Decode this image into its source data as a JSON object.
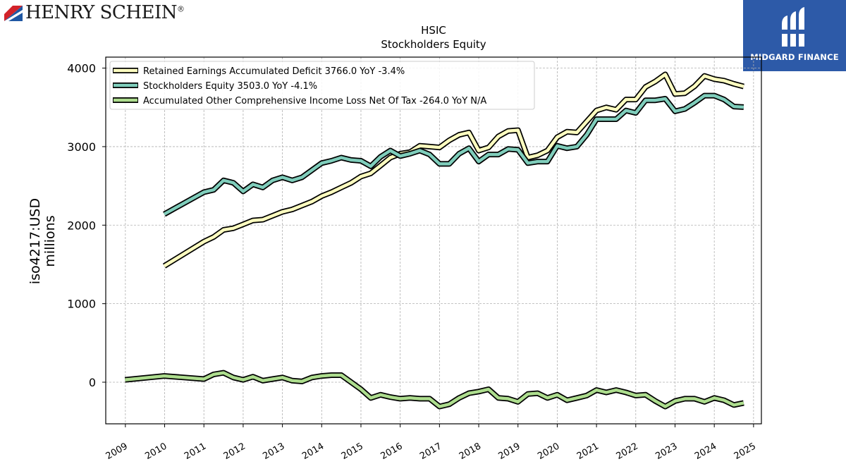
{
  "branding": {
    "company_logo_text": "HENRY SCHEIN",
    "company_logo_mark": "®",
    "publisher_logo_text": "MIDGARD FINANCE",
    "company_logo_icon": "henry-schein-wing-icon",
    "publisher_logo_icon": "midgard-finance-icon"
  },
  "chart_data": {
    "type": "line",
    "title": "HSIC",
    "subtitle": "Stockholders  Equity",
    "ylabel_line1": "iso4217:USD",
    "ylabel_line2": "millions",
    "xlabel": "",
    "xlim": [
      2008.5,
      2025.2
    ],
    "ylim": [
      -530,
      4140
    ],
    "yticks": [
      0,
      1000,
      2000,
      3000,
      4000
    ],
    "xticks": [
      "2009",
      "2010",
      "2011",
      "2012",
      "2013",
      "2014",
      "2015",
      "2016",
      "2017",
      "2018",
      "2019",
      "2020",
      "2021",
      "2022",
      "2023",
      "2024",
      "2025"
    ],
    "grid": true,
    "legend_position": "top-left",
    "series": [
      {
        "name": "Retained Earnings Accumulated Deficit  3766.0 YoY -3.4%",
        "color": "#ffffc0",
        "points": [
          [
            2009.99,
            1480
          ],
          [
            2011.0,
            1790
          ],
          [
            2011.25,
            1850
          ],
          [
            2011.5,
            1940
          ],
          [
            2011.75,
            1960
          ],
          [
            2012.0,
            2010
          ],
          [
            2012.25,
            2060
          ],
          [
            2012.5,
            2070
          ],
          [
            2012.75,
            2120
          ],
          [
            2013.0,
            2170
          ],
          [
            2013.25,
            2200
          ],
          [
            2013.5,
            2250
          ],
          [
            2013.75,
            2300
          ],
          [
            2014.0,
            2370
          ],
          [
            2014.25,
            2420
          ],
          [
            2014.5,
            2480
          ],
          [
            2014.75,
            2540
          ],
          [
            2015.0,
            2620
          ],
          [
            2015.25,
            2660
          ],
          [
            2015.5,
            2760
          ],
          [
            2015.75,
            2860
          ],
          [
            2016.0,
            2910
          ],
          [
            2016.25,
            2930
          ],
          [
            2016.5,
            3010
          ],
          [
            2016.75,
            3000
          ],
          [
            2017.0,
            2990
          ],
          [
            2017.25,
            3080
          ],
          [
            2017.5,
            3150
          ],
          [
            2017.75,
            3180
          ],
          [
            2018.0,
            2950
          ],
          [
            2018.25,
            2990
          ],
          [
            2018.5,
            3130
          ],
          [
            2018.75,
            3200
          ],
          [
            2019.0,
            3210
          ],
          [
            2019.25,
            2860
          ],
          [
            2019.5,
            2890
          ],
          [
            2019.75,
            2950
          ],
          [
            2020.0,
            3120
          ],
          [
            2020.25,
            3190
          ],
          [
            2020.5,
            3180
          ],
          [
            2020.75,
            3320
          ],
          [
            2021.0,
            3460
          ],
          [
            2021.25,
            3500
          ],
          [
            2021.5,
            3470
          ],
          [
            2021.75,
            3600
          ],
          [
            2022.0,
            3600
          ],
          [
            2022.25,
            3760
          ],
          [
            2022.5,
            3830
          ],
          [
            2022.75,
            3920
          ],
          [
            2023.0,
            3670
          ],
          [
            2023.25,
            3680
          ],
          [
            2023.5,
            3770
          ],
          [
            2023.75,
            3900
          ],
          [
            2024.0,
            3860
          ],
          [
            2024.25,
            3840
          ],
          [
            2024.5,
            3800
          ],
          [
            2024.75,
            3766
          ]
        ]
      },
      {
        "name": "Stockholders Equity  3503.0 YoY -4.1%",
        "color": "#7fcdbb",
        "points": [
          [
            2009.99,
            2140
          ],
          [
            2011.0,
            2420
          ],
          [
            2011.25,
            2450
          ],
          [
            2011.5,
            2570
          ],
          [
            2011.75,
            2540
          ],
          [
            2012.0,
            2430
          ],
          [
            2012.25,
            2520
          ],
          [
            2012.5,
            2480
          ],
          [
            2012.75,
            2570
          ],
          [
            2013.0,
            2610
          ],
          [
            2013.25,
            2570
          ],
          [
            2013.5,
            2610
          ],
          [
            2013.75,
            2700
          ],
          [
            2014.0,
            2790
          ],
          [
            2014.25,
            2820
          ],
          [
            2014.5,
            2860
          ],
          [
            2014.75,
            2830
          ],
          [
            2015.0,
            2820
          ],
          [
            2015.25,
            2750
          ],
          [
            2015.5,
            2870
          ],
          [
            2015.75,
            2950
          ],
          [
            2016.0,
            2880
          ],
          [
            2016.25,
            2910
          ],
          [
            2016.5,
            2950
          ],
          [
            2016.75,
            2900
          ],
          [
            2017.0,
            2780
          ],
          [
            2017.25,
            2780
          ],
          [
            2017.5,
            2910
          ],
          [
            2017.75,
            2980
          ],
          [
            2018.0,
            2810
          ],
          [
            2018.25,
            2900
          ],
          [
            2018.5,
            2900
          ],
          [
            2018.75,
            2970
          ],
          [
            2019.0,
            2960
          ],
          [
            2019.25,
            2790
          ],
          [
            2019.5,
            2810
          ],
          [
            2019.75,
            2810
          ],
          [
            2020.0,
            3010
          ],
          [
            2020.25,
            2980
          ],
          [
            2020.5,
            3000
          ],
          [
            2020.75,
            3150
          ],
          [
            2021.0,
            3350
          ],
          [
            2021.25,
            3350
          ],
          [
            2021.5,
            3350
          ],
          [
            2021.75,
            3460
          ],
          [
            2022.0,
            3430
          ],
          [
            2022.25,
            3590
          ],
          [
            2022.5,
            3590
          ],
          [
            2022.75,
            3610
          ],
          [
            2023.0,
            3450
          ],
          [
            2023.25,
            3480
          ],
          [
            2023.5,
            3560
          ],
          [
            2023.75,
            3650
          ],
          [
            2024.0,
            3650
          ],
          [
            2024.25,
            3600
          ],
          [
            2024.5,
            3510
          ],
          [
            2024.75,
            3503
          ]
        ]
      },
      {
        "name": "Accumulated Other Comprehensive Income Loss Net Of Tax  -264.0 YoY N/A",
        "color": "#addd8e",
        "points": [
          [
            2008.99,
            30
          ],
          [
            2009.99,
            80
          ],
          [
            2011.0,
            40
          ],
          [
            2011.25,
            100
          ],
          [
            2011.5,
            120
          ],
          [
            2011.75,
            60
          ],
          [
            2012.0,
            30
          ],
          [
            2012.25,
            70
          ],
          [
            2012.5,
            20
          ],
          [
            2012.75,
            40
          ],
          [
            2013.0,
            60
          ],
          [
            2013.25,
            20
          ],
          [
            2013.5,
            10
          ],
          [
            2013.75,
            60
          ],
          [
            2014.0,
            80
          ],
          [
            2014.25,
            90
          ],
          [
            2014.5,
            90
          ],
          [
            2014.75,
            0
          ],
          [
            2015.0,
            -90
          ],
          [
            2015.25,
            -200
          ],
          [
            2015.5,
            -160
          ],
          [
            2015.75,
            -190
          ],
          [
            2016.0,
            -210
          ],
          [
            2016.25,
            -200
          ],
          [
            2016.5,
            -210
          ],
          [
            2016.75,
            -210
          ],
          [
            2017.0,
            -310
          ],
          [
            2017.25,
            -280
          ],
          [
            2017.5,
            -200
          ],
          [
            2017.75,
            -140
          ],
          [
            2018.0,
            -120
          ],
          [
            2018.25,
            -90
          ],
          [
            2018.5,
            -200
          ],
          [
            2018.75,
            -210
          ],
          [
            2019.0,
            -250
          ],
          [
            2019.25,
            -150
          ],
          [
            2019.5,
            -140
          ],
          [
            2019.75,
            -200
          ],
          [
            2020.0,
            -160
          ],
          [
            2020.25,
            -230
          ],
          [
            2020.5,
            -200
          ],
          [
            2020.75,
            -170
          ],
          [
            2021.0,
            -100
          ],
          [
            2021.25,
            -130
          ],
          [
            2021.5,
            -100
          ],
          [
            2021.75,
            -130
          ],
          [
            2022.0,
            -170
          ],
          [
            2022.25,
            -160
          ],
          [
            2022.5,
            -240
          ],
          [
            2022.75,
            -310
          ],
          [
            2023.0,
            -240
          ],
          [
            2023.25,
            -210
          ],
          [
            2023.5,
            -210
          ],
          [
            2023.75,
            -250
          ],
          [
            2024.0,
            -200
          ],
          [
            2024.25,
            -230
          ],
          [
            2024.5,
            -290
          ],
          [
            2024.75,
            -264
          ]
        ]
      }
    ]
  }
}
